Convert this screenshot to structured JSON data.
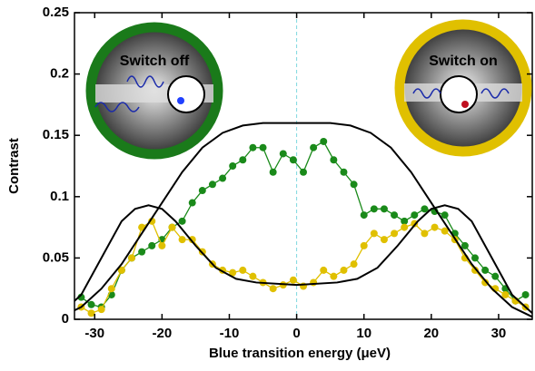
{
  "chart_data": {
    "type": "line",
    "xlabel": "Blue transition energy (μeV)",
    "ylabel": "Contrast",
    "xlim": [
      -33,
      35
    ],
    "ylim": [
      0,
      0.25
    ],
    "xticks": [
      -30,
      -20,
      -10,
      0,
      10,
      20,
      30
    ],
    "yticks": [
      0,
      0.05,
      0.1,
      0.15,
      0.2,
      0.25
    ],
    "annotations": [
      "Switch off",
      "Switch on"
    ],
    "series": [
      {
        "name": null,
        "color": "#1a8a1a",
        "markers": true,
        "x": [
          -32,
          -30.5,
          -29,
          -27.5,
          -26,
          -24.5,
          -23,
          -21.5,
          -20,
          -18.5,
          -17,
          -15.5,
          -14,
          -12.5,
          -11,
          -9.5,
          -8,
          -6.5,
          -5,
          -3.5,
          -2,
          -0.5,
          1,
          2.5,
          4,
          5.5,
          7,
          8.5,
          10,
          11.5,
          13,
          14.5,
          16,
          17.5,
          19,
          20.5,
          22,
          23.5,
          25,
          26.5,
          28,
          29.5,
          31,
          32.5,
          34
        ],
        "values": [
          0.018,
          0.012,
          0.01,
          0.02,
          0.04,
          0.05,
          0.055,
          0.06,
          0.065,
          0.075,
          0.08,
          0.095,
          0.105,
          0.11,
          0.115,
          0.125,
          0.13,
          0.14,
          0.14,
          0.12,
          0.135,
          0.13,
          0.12,
          0.14,
          0.145,
          0.13,
          0.12,
          0.11,
          0.085,
          0.09,
          0.09,
          0.085,
          0.08,
          0.085,
          0.09,
          0.088,
          0.085,
          0.07,
          0.06,
          0.05,
          0.04,
          0.035,
          0.025,
          0.015,
          0.02
        ]
      },
      {
        "name": null,
        "color": "#e0c000",
        "markers": true,
        "x": [
          -32,
          -30.5,
          -29,
          -27.5,
          -26,
          -24.5,
          -23,
          -21.5,
          -20,
          -18.5,
          -17,
          -15.5,
          -14,
          -12.5,
          -11,
          -9.5,
          -8,
          -6.5,
          -5,
          -3.5,
          -2,
          -0.5,
          1,
          2.5,
          4,
          5.5,
          7,
          8.5,
          10,
          11.5,
          13,
          14.5,
          16,
          17.5,
          19,
          20.5,
          22,
          23.5,
          25,
          26.5,
          28,
          29.5,
          31,
          32.5,
          34
        ],
        "values": [
          0.01,
          0.005,
          0.008,
          0.025,
          0.04,
          0.05,
          0.075,
          0.08,
          0.06,
          0.075,
          0.065,
          0.065,
          0.055,
          0.045,
          0.04,
          0.038,
          0.04,
          0.035,
          0.03,
          0.025,
          0.028,
          0.032,
          0.027,
          0.03,
          0.04,
          0.035,
          0.04,
          0.045,
          0.06,
          0.07,
          0.065,
          0.07,
          0.075,
          0.078,
          0.07,
          0.075,
          0.072,
          0.065,
          0.05,
          0.04,
          0.03,
          0.025,
          0.02,
          0.015,
          0.01
        ]
      },
      {
        "name": null,
        "color": "#000000",
        "markers": false,
        "x": [
          -35,
          -32,
          -29,
          -26,
          -23,
          -20,
          -17,
          -14,
          -11,
          -8,
          -5,
          0,
          5,
          8,
          11,
          14,
          17,
          20,
          23,
          26,
          29,
          32,
          35
        ],
        "values": [
          0.002,
          0.01,
          0.025,
          0.045,
          0.07,
          0.095,
          0.12,
          0.14,
          0.152,
          0.158,
          0.16,
          0.16,
          0.16,
          0.158,
          0.152,
          0.14,
          0.12,
          0.095,
          0.07,
          0.045,
          0.025,
          0.01,
          0.002
        ]
      },
      {
        "name": null,
        "color": "#000000",
        "markers": false,
        "x": [
          -35,
          -32,
          -29,
          -26,
          -24,
          -22,
          -20,
          -18,
          -15,
          -12,
          -9,
          -6,
          0,
          6,
          9,
          12,
          15,
          18,
          20,
          22,
          24,
          26,
          29,
          32,
          35
        ],
        "values": [
          0.005,
          0.02,
          0.05,
          0.08,
          0.09,
          0.093,
          0.09,
          0.08,
          0.06,
          0.042,
          0.033,
          0.03,
          0.028,
          0.03,
          0.033,
          0.042,
          0.06,
          0.08,
          0.09,
          0.093,
          0.09,
          0.08,
          0.05,
          0.02,
          0.005
        ]
      }
    ]
  }
}
